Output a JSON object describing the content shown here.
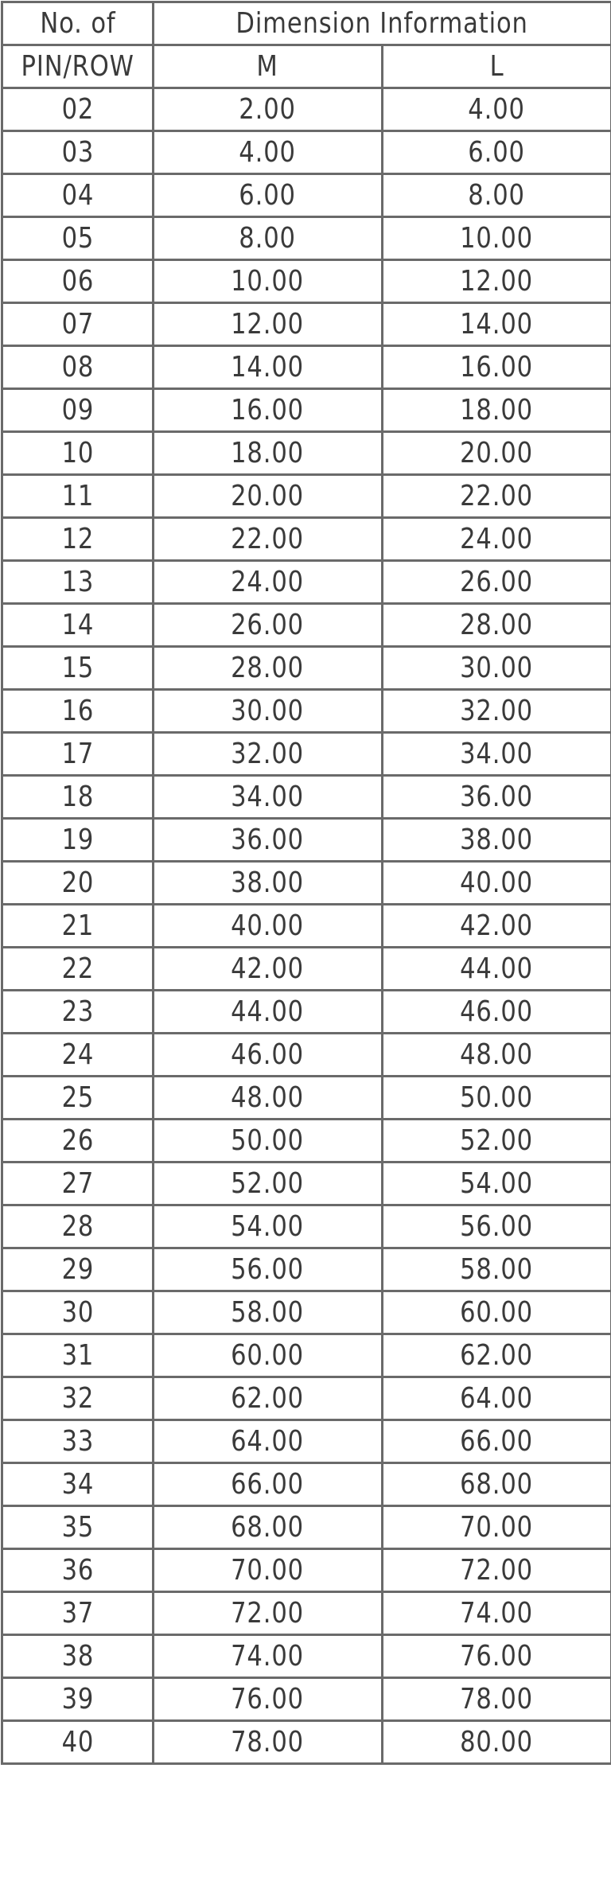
{
  "table": {
    "header": {
      "pin_col_line1": "No. of",
      "pin_col_line2": "PIN/ROW",
      "group": "Dimension Information",
      "m": "M",
      "l": "L"
    },
    "rows": [
      [
        "02",
        "2.00",
        "4.00"
      ],
      [
        "03",
        "4.00",
        "6.00"
      ],
      [
        "04",
        "6.00",
        "8.00"
      ],
      [
        "05",
        "8.00",
        "10.00"
      ],
      [
        "06",
        "10.00",
        "12.00"
      ],
      [
        "07",
        "12.00",
        "14.00"
      ],
      [
        "08",
        "14.00",
        "16.00"
      ],
      [
        "09",
        "16.00",
        "18.00"
      ],
      [
        "10",
        "18.00",
        "20.00"
      ],
      [
        "11",
        "20.00",
        "22.00"
      ],
      [
        "12",
        "22.00",
        "24.00"
      ],
      [
        "13",
        "24.00",
        "26.00"
      ],
      [
        "14",
        "26.00",
        "28.00"
      ],
      [
        "15",
        "28.00",
        "30.00"
      ],
      [
        "16",
        "30.00",
        "32.00"
      ],
      [
        "17",
        "32.00",
        "34.00"
      ],
      [
        "18",
        "34.00",
        "36.00"
      ],
      [
        "19",
        "36.00",
        "38.00"
      ],
      [
        "20",
        "38.00",
        "40.00"
      ],
      [
        "21",
        "40.00",
        "42.00"
      ],
      [
        "22",
        "42.00",
        "44.00"
      ],
      [
        "23",
        "44.00",
        "46.00"
      ],
      [
        "24",
        "46.00",
        "48.00"
      ],
      [
        "25",
        "48.00",
        "50.00"
      ],
      [
        "26",
        "50.00",
        "52.00"
      ],
      [
        "27",
        "52.00",
        "54.00"
      ],
      [
        "28",
        "54.00",
        "56.00"
      ],
      [
        "29",
        "56.00",
        "58.00"
      ],
      [
        "30",
        "58.00",
        "60.00"
      ],
      [
        "31",
        "60.00",
        "62.00"
      ],
      [
        "32",
        "62.00",
        "64.00"
      ],
      [
        "33",
        "64.00",
        "66.00"
      ],
      [
        "34",
        "66.00",
        "68.00"
      ],
      [
        "35",
        "68.00",
        "70.00"
      ],
      [
        "36",
        "70.00",
        "72.00"
      ],
      [
        "37",
        "72.00",
        "74.00"
      ],
      [
        "38",
        "74.00",
        "76.00"
      ],
      [
        "39",
        "76.00",
        "78.00"
      ],
      [
        "40",
        "78.00",
        "80.00"
      ]
    ]
  }
}
